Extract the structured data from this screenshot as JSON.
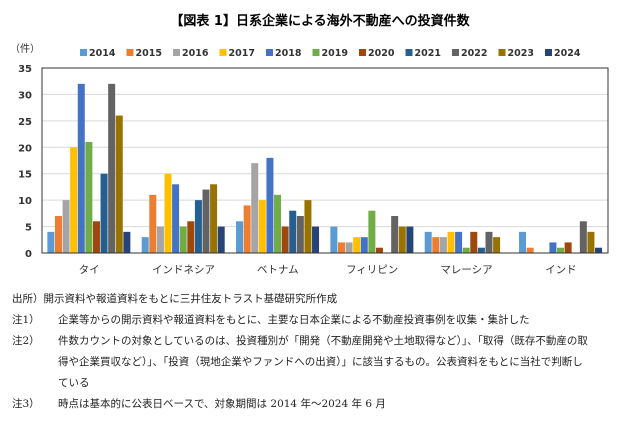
{
  "chart_data": {
    "type": "bar",
    "title": "【図表 1】日系企業による海外不動産への投資件数",
    "ylabel": "（件）",
    "xlabel": "",
    "ylim": [
      0,
      35
    ],
    "yticks": [
      0,
      5,
      10,
      15,
      20,
      25,
      30,
      35
    ],
    "grid": true,
    "legend": "top",
    "categories": [
      "タイ",
      "インドネシア",
      "ベトナム",
      "フィリピン",
      "マレーシア",
      "インド"
    ],
    "series": [
      {
        "name": "2014",
        "color": "#5B9BD5",
        "values": [
          4,
          3,
          6,
          5,
          4,
          4
        ]
      },
      {
        "name": "2015",
        "color": "#ED7D31",
        "values": [
          7,
          11,
          9,
          2,
          3,
          1
        ]
      },
      {
        "name": "2016",
        "color": "#A5A5A5",
        "values": [
          10,
          5,
          17,
          2,
          3,
          0
        ]
      },
      {
        "name": "2017",
        "color": "#FFC000",
        "values": [
          20,
          15,
          10,
          3,
          4,
          0
        ]
      },
      {
        "name": "2018",
        "color": "#4472C4",
        "values": [
          32,
          13,
          18,
          3,
          4,
          2
        ]
      },
      {
        "name": "2019",
        "color": "#70AD47",
        "values": [
          21,
          5,
          11,
          8,
          1,
          1
        ]
      },
      {
        "name": "2020",
        "color": "#9E480E",
        "values": [
          6,
          6,
          5,
          1,
          4,
          2
        ]
      },
      {
        "name": "2021",
        "color": "#255E91",
        "values": [
          15,
          10,
          8,
          0,
          1,
          0
        ]
      },
      {
        "name": "2022",
        "color": "#636363",
        "values": [
          32,
          12,
          7,
          7,
          4,
          6
        ]
      },
      {
        "name": "2023",
        "color": "#997300",
        "values": [
          26,
          13,
          10,
          5,
          3,
          4
        ]
      },
      {
        "name": "2024",
        "color": "#264478",
        "values": [
          4,
          5,
          5,
          5,
          0,
          1
        ]
      }
    ]
  },
  "notes": {
    "source": "出所）開示資料や報道資料をもとに三井住友トラスト基礎研究所作成",
    "items": [
      {
        "label": "注1）",
        "lines": [
          "企業等からの開示資料や報道資料をもとに、主要な日本企業による不動産投資事例を収集・集計した"
        ]
      },
      {
        "label": "注2）",
        "lines": [
          "件数カウントの対象としているのは、投資種別が「開発（不動産開発や土地取得など）」、「取得（既存不動産の取",
          "得や企業買収など）」、「投資（現地企業やファンドへの出資）」に該当するもの。公表資料をもとに当社で判断し",
          "ている"
        ]
      },
      {
        "label": "注3）",
        "lines": [
          "時点は基本的に公表日ベースで、対象期間は 2014 年～2024 年 6 月"
        ]
      }
    ]
  }
}
